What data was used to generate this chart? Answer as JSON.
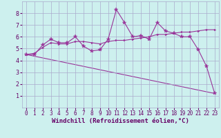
{
  "xlabel": "Windchill (Refroidissement éolien,°C)",
  "bg_color": "#cdf0ee",
  "grid_color": "#aaaacc",
  "line_color": "#993399",
  "xlim": [
    -0.5,
    23.5
  ],
  "ylim": [
    0,
    9
  ],
  "xticks": [
    0,
    1,
    2,
    3,
    4,
    5,
    6,
    7,
    8,
    9,
    10,
    11,
    12,
    13,
    14,
    15,
    16,
    17,
    18,
    19,
    20,
    21,
    22,
    23
  ],
  "yticks": [
    1,
    2,
    3,
    4,
    5,
    6,
    7,
    8
  ],
  "series0_x": [
    0,
    1,
    2,
    3,
    4,
    5,
    6,
    7,
    8,
    9,
    10,
    11,
    12,
    13,
    14,
    15,
    16,
    17,
    18,
    19,
    20,
    21,
    22,
    23
  ],
  "series0_y": [
    4.5,
    4.5,
    5.3,
    5.8,
    5.5,
    5.5,
    6.0,
    5.2,
    4.8,
    4.9,
    5.8,
    8.3,
    7.2,
    6.0,
    6.1,
    5.8,
    7.2,
    6.5,
    6.3,
    6.0,
    6.0,
    4.9,
    3.5,
    1.2
  ],
  "series1_x": [
    0,
    1,
    2,
    3,
    4,
    5,
    6,
    7,
    8,
    9,
    10,
    11,
    12,
    13,
    14,
    15,
    16,
    17,
    18,
    19,
    20,
    21,
    22,
    23
  ],
  "series1_y": [
    4.5,
    4.6,
    5.1,
    5.5,
    5.4,
    5.4,
    5.6,
    5.6,
    5.5,
    5.4,
    5.6,
    5.7,
    5.7,
    5.8,
    5.9,
    6.0,
    6.2,
    6.2,
    6.3,
    6.4,
    6.4,
    6.5,
    6.6,
    6.6
  ],
  "series2_x": [
    0,
    23
  ],
  "series2_y": [
    4.5,
    1.2
  ],
  "xlabel_color": "#660066",
  "tick_color": "#660066",
  "xlabel_fontsize": 6.5,
  "tick_fontsize": 5.5
}
